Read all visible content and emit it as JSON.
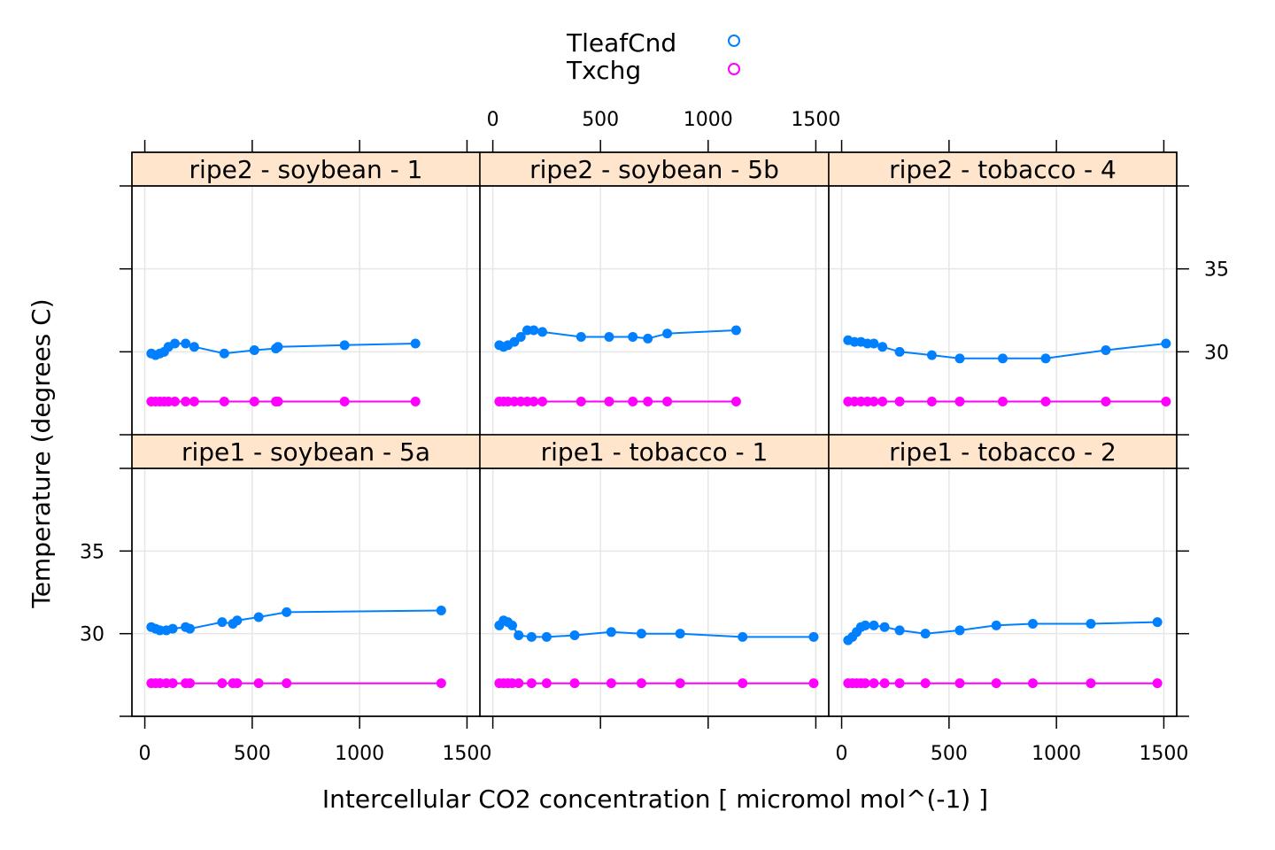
{
  "chart_data": {
    "type": "line",
    "xlabel": "Intercellular CO2 concentration [ micromol mol^(-1) ]",
    "ylabel": "Temperature (degrees C)",
    "xlim": [
      -60,
      1560
    ],
    "ylim": [
      25,
      40
    ],
    "x_ticks": [
      0,
      500,
      1000,
      1500
    ],
    "y_ticks": [
      30,
      35
    ],
    "grid": true,
    "legend": {
      "position": "top",
      "entries": [
        {
          "name": "TleafCnd",
          "color": "#0080ff"
        },
        {
          "name": "Txchg",
          "color": "#ff00ff"
        }
      ]
    },
    "panels": [
      {
        "title": "ripe2 - soybean - 1",
        "series": [
          {
            "name": "TleafCnd",
            "color": "#0080ff",
            "x": [
              30,
              50,
              70,
              90,
              110,
              140,
              190,
              230,
              370,
              510,
              610,
              620,
              930,
              1260
            ],
            "y": [
              29.9,
              29.8,
              29.9,
              30.0,
              30.3,
              30.5,
              30.5,
              30.3,
              29.9,
              30.1,
              30.2,
              30.3,
              30.4,
              30.5
            ]
          },
          {
            "name": "Txchg",
            "color": "#ff00ff",
            "x": [
              30,
              50,
              70,
              90,
              110,
              140,
              190,
              230,
              370,
              510,
              610,
              620,
              930,
              1260
            ],
            "y": [
              27,
              27,
              27,
              27,
              27,
              27,
              27,
              27,
              27,
              27,
              27,
              27,
              27,
              27
            ]
          }
        ]
      },
      {
        "title": "ripe2 - soybean - 5b",
        "series": [
          {
            "name": "TleafCnd",
            "color": "#0080ff",
            "x": [
              30,
              50,
              70,
              100,
              130,
              160,
              190,
              230,
              410,
              540,
              650,
              720,
              810,
              1130
            ],
            "y": [
              30.4,
              30.3,
              30.4,
              30.6,
              30.9,
              31.3,
              31.3,
              31.2,
              30.9,
              30.9,
              30.9,
              30.8,
              31.1,
              31.3
            ]
          },
          {
            "name": "Txchg",
            "color": "#ff00ff",
            "x": [
              30,
              50,
              70,
              100,
              130,
              160,
              190,
              230,
              410,
              540,
              650,
              720,
              810,
              1130
            ],
            "y": [
              27,
              27,
              27,
              27,
              27,
              27,
              27,
              27,
              27,
              27,
              27,
              27,
              27,
              27
            ]
          }
        ]
      },
      {
        "title": "ripe2 - tobacco - 4",
        "series": [
          {
            "name": "TleafCnd",
            "color": "#0080ff",
            "x": [
              30,
              60,
              90,
              120,
              150,
              190,
              270,
              420,
              550,
              750,
              950,
              1230,
              1510
            ],
            "y": [
              30.7,
              30.6,
              30.6,
              30.5,
              30.5,
              30.3,
              30.0,
              29.8,
              29.6,
              29.6,
              29.6,
              30.1,
              30.5
            ]
          },
          {
            "name": "Txchg",
            "color": "#ff00ff",
            "x": [
              30,
              60,
              90,
              120,
              150,
              190,
              270,
              420,
              550,
              750,
              950,
              1230,
              1510
            ],
            "y": [
              27,
              27,
              27,
              27,
              27,
              27,
              27,
              27,
              27,
              27,
              27,
              27,
              27
            ]
          }
        ]
      },
      {
        "title": "ripe1 - soybean - 5a",
        "series": [
          {
            "name": "TleafCnd",
            "color": "#0080ff",
            "x": [
              30,
              50,
              70,
              100,
              130,
              190,
              210,
              360,
              410,
              430,
              530,
              660,
              1380
            ],
            "y": [
              30.4,
              30.3,
              30.2,
              30.2,
              30.3,
              30.4,
              30.3,
              30.7,
              30.6,
              30.8,
              31.0,
              31.3,
              31.4
            ]
          },
          {
            "name": "Txchg",
            "color": "#ff00ff",
            "x": [
              30,
              50,
              70,
              100,
              130,
              190,
              210,
              360,
              410,
              430,
              530,
              660,
              1380
            ],
            "y": [
              27,
              27,
              27,
              27,
              27,
              27,
              27,
              27,
              27,
              27,
              27,
              27,
              27
            ]
          }
        ]
      },
      {
        "title": "ripe1 - tobacco - 1",
        "series": [
          {
            "name": "TleafCnd",
            "color": "#0080ff",
            "x": [
              30,
              50,
              70,
              90,
              120,
              180,
              250,
              380,
              550,
              690,
              870,
              1160,
              1490
            ],
            "y": [
              30.5,
              30.8,
              30.7,
              30.5,
              29.9,
              29.8,
              29.8,
              29.9,
              30.1,
              30.0,
              30.0,
              29.8,
              29.8
            ]
          },
          {
            "name": "Txchg",
            "color": "#ff00ff",
            "x": [
              30,
              50,
              70,
              90,
              120,
              180,
              250,
              380,
              550,
              690,
              870,
              1160,
              1490
            ],
            "y": [
              27,
              27,
              27,
              27,
              27,
              27,
              27,
              27,
              27,
              27,
              27,
              27,
              27
            ]
          }
        ]
      },
      {
        "title": "ripe1 - tobacco - 2",
        "series": [
          {
            "name": "TleafCnd",
            "color": "#0080ff",
            "x": [
              30,
              50,
              70,
              90,
              110,
              150,
              200,
              270,
              390,
              550,
              720,
              890,
              1160,
              1470
            ],
            "y": [
              29.6,
              29.8,
              30.1,
              30.4,
              30.5,
              30.5,
              30.4,
              30.2,
              30.0,
              30.2,
              30.5,
              30.6,
              30.6,
              30.7
            ]
          },
          {
            "name": "Txchg",
            "color": "#ff00ff",
            "x": [
              30,
              50,
              70,
              90,
              110,
              150,
              200,
              270,
              390,
              550,
              720,
              890,
              1160,
              1470
            ],
            "y": [
              27,
              27,
              27,
              27,
              27,
              27,
              27,
              27,
              27,
              27,
              27,
              27,
              27,
              27
            ]
          }
        ]
      }
    ]
  }
}
